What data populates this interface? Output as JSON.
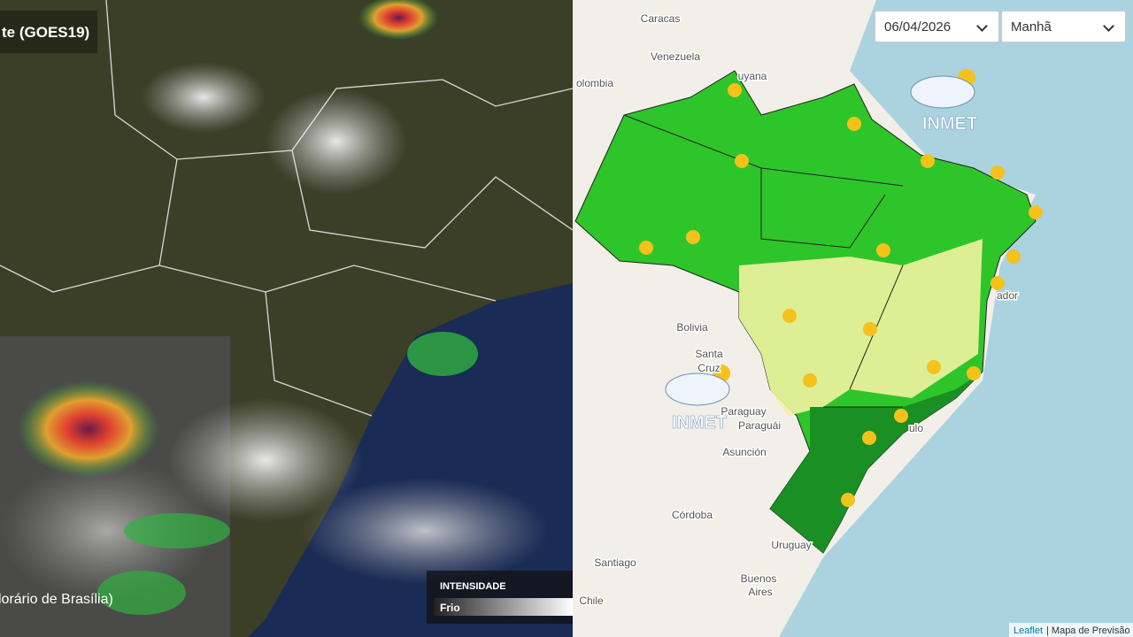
{
  "satellite": {
    "title": "te (GOES19)",
    "timezone": "lorário de Brasília)",
    "legend_title": "INTENSIDADE",
    "legend_label": "Frio"
  },
  "controls": {
    "date": "06/04/2026",
    "period": "Manhã"
  },
  "map": {
    "labels": [
      "Caracas",
      "Venezuela",
      "uyana",
      "olombia",
      "Bolivia",
      "Santa",
      "Cruz",
      "Paraguay",
      "Paraguái",
      "Asunción",
      "Córdoba",
      "Uruguay",
      "Santiago",
      "Buenos",
      "Aires",
      "Chile",
      "ulo",
      "ador"
    ],
    "logos": [
      "INMET",
      "INMET"
    ]
  },
  "attribution": {
    "link": "Leaflet",
    "text": "| Mapa de Previsão"
  }
}
